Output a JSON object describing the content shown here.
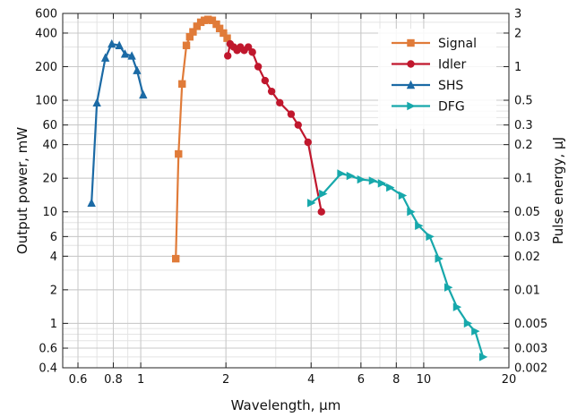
{
  "chart_data": {
    "type": "line",
    "title": "",
    "xlabel": "Wavelength, µm",
    "ylabel": "Output power, mW",
    "y2label": "Pulse energy, µJ",
    "xscale": "log",
    "yscale": "log",
    "xlim": [
      0.53,
      20
    ],
    "ylim": [
      0.4,
      600
    ],
    "y2lim": [
      0.002,
      3
    ],
    "grid": true,
    "legend": "top-right",
    "x_ticks": [
      {
        "value": 0.6,
        "label": "0.6"
      },
      {
        "value": 0.8,
        "label": "0.8"
      },
      {
        "value": 1,
        "label": "1"
      },
      {
        "value": 2,
        "label": "2"
      },
      {
        "value": 4,
        "label": "4"
      },
      {
        "value": 6,
        "label": "6"
      },
      {
        "value": 8,
        "label": "8"
      },
      {
        "value": 10,
        "label": "10"
      },
      {
        "value": 20,
        "label": "20"
      }
    ],
    "y_ticks": [
      {
        "value": 0.4,
        "label": "0.4"
      },
      {
        "value": 0.6,
        "label": "0.6"
      },
      {
        "value": 1,
        "label": "1"
      },
      {
        "value": 2,
        "label": "2"
      },
      {
        "value": 4,
        "label": "4"
      },
      {
        "value": 6,
        "label": "6"
      },
      {
        "value": 10,
        "label": "10"
      },
      {
        "value": 20,
        "label": "20"
      },
      {
        "value": 40,
        "label": "40"
      },
      {
        "value": 60,
        "label": "60"
      },
      {
        "value": 100,
        "label": "100"
      },
      {
        "value": 200,
        "label": "200"
      },
      {
        "value": 400,
        "label": "400"
      },
      {
        "value": 600,
        "label": "600"
      }
    ],
    "y2_ticks": [
      {
        "value": 0.002,
        "label": "0.002"
      },
      {
        "value": 0.003,
        "label": "0.003"
      },
      {
        "value": 0.005,
        "label": "0.005"
      },
      {
        "value": 0.01,
        "label": "0.01"
      },
      {
        "value": 0.02,
        "label": "0.02"
      },
      {
        "value": 0.03,
        "label": "0.03"
      },
      {
        "value": 0.05,
        "label": "0.05"
      },
      {
        "value": 0.1,
        "label": "0.1"
      },
      {
        "value": 0.2,
        "label": "0.2"
      },
      {
        "value": 0.3,
        "label": "0.3"
      },
      {
        "value": 0.5,
        "label": "0.5"
      },
      {
        "value": 1,
        "label": "1"
      },
      {
        "value": 2,
        "label": "2"
      },
      {
        "value": 3,
        "label": "3"
      }
    ],
    "series": [
      {
        "name": "Signal",
        "color": "#e07b39",
        "marker": "square",
        "points": [
          [
            1.33,
            3.8
          ],
          [
            1.36,
            33
          ],
          [
            1.4,
            140
          ],
          [
            1.45,
            310
          ],
          [
            1.49,
            370
          ],
          [
            1.53,
            410
          ],
          [
            1.58,
            460
          ],
          [
            1.63,
            500
          ],
          [
            1.68,
            520
          ],
          [
            1.73,
            530
          ],
          [
            1.79,
            520
          ],
          [
            1.85,
            480
          ],
          [
            1.9,
            440
          ],
          [
            1.96,
            400
          ],
          [
            2.02,
            360
          ]
        ]
      },
      {
        "name": "Idler",
        "color": "#c0172d",
        "marker": "circle",
        "points": [
          [
            2.03,
            250
          ],
          [
            2.07,
            320
          ],
          [
            2.13,
            300
          ],
          [
            2.19,
            280
          ],
          [
            2.25,
            300
          ],
          [
            2.32,
            280
          ],
          [
            2.4,
            300
          ],
          [
            2.48,
            270
          ],
          [
            2.6,
            200
          ],
          [
            2.75,
            150
          ],
          [
            2.9,
            120
          ],
          [
            3.1,
            95
          ],
          [
            3.4,
            75
          ],
          [
            3.6,
            60
          ],
          [
            3.9,
            42
          ],
          [
            4.35,
            10
          ]
        ]
      },
      {
        "name": "SHS",
        "color": "#1b6aa5",
        "marker": "triangle-up",
        "points": [
          [
            0.67,
            12
          ],
          [
            0.7,
            95
          ],
          [
            0.75,
            240
          ],
          [
            0.79,
            320
          ],
          [
            0.84,
            310
          ],
          [
            0.88,
            260
          ],
          [
            0.93,
            250
          ],
          [
            0.97,
            185
          ],
          [
            1.02,
            112
          ]
        ]
      },
      {
        "name": "DFG",
        "color": "#17a8ab",
        "marker": "triangle-right",
        "points": [
          [
            4.0,
            12
          ],
          [
            4.4,
            14.5
          ],
          [
            5.1,
            22
          ],
          [
            5.5,
            21
          ],
          [
            6.0,
            19.5
          ],
          [
            6.6,
            19
          ],
          [
            7.1,
            18
          ],
          [
            7.6,
            16.5
          ],
          [
            8.4,
            14
          ],
          [
            9.0,
            10
          ],
          [
            9.6,
            7.5
          ],
          [
            10.5,
            6
          ],
          [
            11.3,
            3.8
          ],
          [
            12.2,
            2.1
          ],
          [
            13.1,
            1.4
          ],
          [
            14.3,
            1.0
          ],
          [
            15.2,
            0.85
          ],
          [
            16.2,
            0.5
          ]
        ]
      }
    ]
  }
}
